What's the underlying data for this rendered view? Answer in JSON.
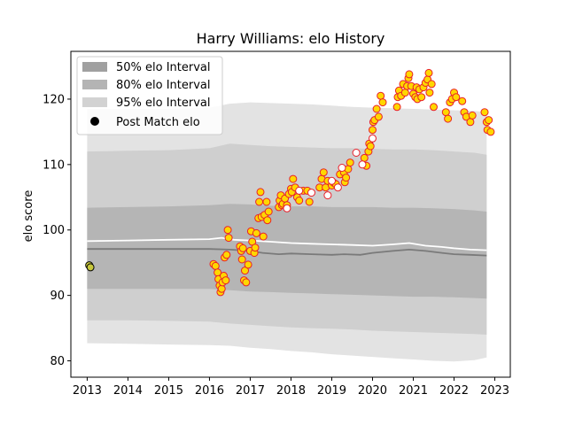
{
  "chart_data": {
    "type": "scatter",
    "title": "Harry Williams: elo History",
    "xlabel": "",
    "ylabel": "elo score",
    "xlim": [
      2012.6,
      2023.38
    ],
    "ylim": [
      77.5,
      127.3
    ],
    "x_ticks": [
      2013,
      2014,
      2015,
      2016,
      2017,
      2018,
      2019,
      2020,
      2021,
      2022,
      2023
    ],
    "x_tick_labels": [
      "2013",
      "2014",
      "2015",
      "2016",
      "2017",
      "2018",
      "2019",
      "2020",
      "2021",
      "2022",
      "2023"
    ],
    "y_ticks": [
      80,
      90,
      100,
      110,
      120
    ],
    "y_tick_labels": [
      "80",
      "90",
      "100",
      "110",
      "120"
    ],
    "grid": false,
    "legend_position": "top-left",
    "legend": [
      {
        "label": "50% elo Interval",
        "kind": "band",
        "color": "#a0a0a0"
      },
      {
        "label": "80% elo Interval",
        "kind": "band",
        "color": "#b4b4b4"
      },
      {
        "label": "95% elo Interval",
        "kind": "band",
        "color": "#d2d2d2"
      },
      {
        "label": "Post Match elo",
        "kind": "marker",
        "color": "#000000"
      }
    ],
    "band_x": [
      2013,
      2014,
      2015,
      2016,
      2016.5,
      2017,
      2017.5,
      2018,
      2018.5,
      2019,
      2019.5,
      2020,
      2020.5,
      2021,
      2021.5,
      2022,
      2022.5,
      2022.8
    ],
    "band_95": {
      "lower": [
        82.7,
        82.6,
        82.5,
        82.4,
        82.3,
        82.0,
        81.8,
        81.5,
        81.3,
        81.0,
        80.8,
        80.6,
        80.4,
        80.2,
        80.0,
        79.9,
        80.1,
        80.5
      ],
      "upper": [
        118.5,
        118.5,
        118.5,
        118.7,
        119.3,
        119.5,
        119.4,
        119.3,
        119.2,
        119.0,
        118.8,
        118.7,
        118.6,
        118.5,
        118.4,
        118.3,
        118.2,
        118.0
      ]
    },
    "band_80": {
      "lower": [
        86.2,
        86.2,
        86.1,
        86.0,
        85.7,
        85.5,
        85.3,
        85.1,
        85.0,
        84.9,
        84.8,
        84.6,
        84.5,
        84.4,
        84.3,
        84.2,
        84.1,
        84.0
      ],
      "upper": [
        112.0,
        112.1,
        112.2,
        112.5,
        113.2,
        113.0,
        112.8,
        112.7,
        112.6,
        112.5,
        112.5,
        112.4,
        112.3,
        112.3,
        112.2,
        112.0,
        111.8,
        111.5
      ]
    },
    "band_50": {
      "lower": [
        91.0,
        91.0,
        91.0,
        91.0,
        90.8,
        90.6,
        90.5,
        90.4,
        90.3,
        90.2,
        90.1,
        90.0,
        89.9,
        89.8,
        89.8,
        89.7,
        89.6,
        89.5
      ],
      "upper": [
        103.4,
        103.5,
        103.6,
        103.8,
        104.0,
        103.9,
        103.7,
        103.6,
        103.6,
        103.5,
        103.5,
        103.5,
        103.4,
        103.4,
        103.3,
        103.2,
        103.0,
        102.8
      ]
    },
    "mean_line_x": [
      2013,
      2014,
      2015,
      2016,
      2016.3,
      2016.6,
      2017,
      2017.5,
      2018,
      2018.5,
      2019,
      2019.5,
      2020,
      2020.5,
      2020.9,
      2021.3,
      2021.7,
      2022,
      2022.4,
      2022.8
    ],
    "mean_line_y": [
      98.3,
      98.4,
      98.5,
      98.6,
      98.8,
      98.5,
      98.4,
      98.2,
      98.0,
      97.9,
      97.8,
      97.7,
      97.6,
      97.8,
      98.0,
      97.6,
      97.4,
      97.2,
      97.0,
      96.9
    ],
    "median_line_x": [
      2013,
      2014,
      2015,
      2016,
      2016.5,
      2017,
      2017.3,
      2017.7,
      2018,
      2018.5,
      2019,
      2019.3,
      2019.7,
      2020,
      2020.5,
      2020.9,
      2021.3,
      2021.7,
      2022,
      2022.4,
      2022.8
    ],
    "median_line_y": [
      97.1,
      97.1,
      97.1,
      97.1,
      97.0,
      96.8,
      96.5,
      96.3,
      96.4,
      96.3,
      96.2,
      96.3,
      96.2,
      96.5,
      96.8,
      97.0,
      96.8,
      96.5,
      96.3,
      96.2,
      96.1
    ],
    "series": [
      {
        "marker_style": "yellow-fill-red-edge",
        "points": [
          [
            2013.05,
            94.6
          ],
          [
            2013.08,
            94.3
          ],
          [
            2016.1,
            94.8
          ],
          [
            2016.15,
            94.5
          ],
          [
            2016.2,
            93.5
          ],
          [
            2016.22,
            92.5
          ],
          [
            2016.25,
            91.5
          ],
          [
            2016.27,
            90.5
          ],
          [
            2016.3,
            91.0
          ],
          [
            2016.32,
            92.0
          ],
          [
            2016.35,
            93.0
          ],
          [
            2016.37,
            95.8
          ],
          [
            2016.4,
            92.3
          ],
          [
            2016.42,
            96.2
          ],
          [
            2016.45,
            100.0
          ],
          [
            2016.47,
            98.8
          ],
          [
            2016.75,
            97.5
          ],
          [
            2016.78,
            96.8
          ],
          [
            2016.8,
            95.5
          ],
          [
            2016.82,
            97.2
          ],
          [
            2016.85,
            92.3
          ],
          [
            2016.87,
            93.8
          ],
          [
            2016.9,
            92.0
          ],
          [
            2016.95,
            94.7
          ],
          [
            2017.0,
            96.8
          ],
          [
            2017.02,
            99.8
          ],
          [
            2017.05,
            98.2
          ],
          [
            2017.1,
            96.5
          ],
          [
            2017.12,
            97.3
          ],
          [
            2017.15,
            99.5
          ],
          [
            2017.2,
            101.8
          ],
          [
            2017.22,
            104.3
          ],
          [
            2017.25,
            105.8
          ],
          [
            2017.28,
            102.0
          ],
          [
            2017.32,
            99.0
          ],
          [
            2017.35,
            102.3
          ],
          [
            2017.4,
            104.3
          ],
          [
            2017.42,
            101.5
          ],
          [
            2017.45,
            102.8
          ],
          [
            2017.7,
            103.5
          ],
          [
            2017.72,
            104.5
          ],
          [
            2017.75,
            105.3
          ],
          [
            2017.78,
            103.8
          ],
          [
            2017.8,
            104.0
          ],
          [
            2017.85,
            104.8
          ],
          [
            2017.9,
            103.8
          ],
          [
            2017.95,
            105.5
          ],
          [
            2018.0,
            106.3
          ],
          [
            2018.02,
            105.8
          ],
          [
            2018.05,
            107.8
          ],
          [
            2018.1,
            106.5
          ],
          [
            2018.15,
            105.0
          ],
          [
            2018.2,
            104.5
          ],
          [
            2018.3,
            106.0
          ],
          [
            2018.4,
            106.0
          ],
          [
            2018.45,
            104.3
          ],
          [
            2018.7,
            106.5
          ],
          [
            2018.75,
            107.8
          ],
          [
            2018.8,
            108.8
          ],
          [
            2018.85,
            106.5
          ],
          [
            2018.9,
            107.5
          ],
          [
            2019.0,
            106.8
          ],
          [
            2019.05,
            107.2
          ],
          [
            2019.1,
            107.0
          ],
          [
            2019.2,
            108.5
          ],
          [
            2019.3,
            108.8
          ],
          [
            2019.32,
            107.3
          ],
          [
            2019.35,
            108.0
          ],
          [
            2019.4,
            109.3
          ],
          [
            2019.45,
            110.3
          ],
          [
            2019.8,
            111.0
          ],
          [
            2019.85,
            109.8
          ],
          [
            2019.9,
            112.0
          ],
          [
            2019.92,
            113.2
          ],
          [
            2019.95,
            112.8
          ],
          [
            2020.0,
            115.3
          ],
          [
            2020.02,
            116.5
          ],
          [
            2020.05,
            116.8
          ],
          [
            2020.1,
            118.5
          ],
          [
            2020.15,
            117.3
          ],
          [
            2020.2,
            120.5
          ],
          [
            2020.25,
            119.5
          ],
          [
            2020.6,
            118.8
          ],
          [
            2020.62,
            120.3
          ],
          [
            2020.65,
            121.3
          ],
          [
            2020.7,
            120.5
          ],
          [
            2020.75,
            122.3
          ],
          [
            2020.8,
            121.0
          ],
          [
            2020.85,
            122.0
          ],
          [
            2020.88,
            123.2
          ],
          [
            2020.9,
            123.8
          ],
          [
            2020.95,
            122.0
          ],
          [
            2021.0,
            120.8
          ],
          [
            2021.05,
            120.3
          ],
          [
            2021.08,
            121.8
          ],
          [
            2021.1,
            120.0
          ],
          [
            2021.15,
            121.5
          ],
          [
            2021.2,
            120.3
          ],
          [
            2021.25,
            121.8
          ],
          [
            2021.3,
            122.5
          ],
          [
            2021.35,
            123.0
          ],
          [
            2021.38,
            124.0
          ],
          [
            2021.4,
            121.0
          ],
          [
            2021.45,
            122.3
          ],
          [
            2021.5,
            118.8
          ],
          [
            2021.8,
            118.0
          ],
          [
            2021.85,
            117.0
          ],
          [
            2021.9,
            119.5
          ],
          [
            2021.95,
            120.0
          ],
          [
            2022.0,
            121.0
          ],
          [
            2022.05,
            120.3
          ],
          [
            2022.2,
            119.7
          ],
          [
            2022.25,
            118.0
          ],
          [
            2022.3,
            117.3
          ],
          [
            2022.4,
            116.5
          ],
          [
            2022.45,
            117.5
          ],
          [
            2022.75,
            118.0
          ],
          [
            2022.8,
            116.5
          ],
          [
            2022.82,
            115.3
          ],
          [
            2022.85,
            116.8
          ],
          [
            2022.9,
            115.0
          ]
        ]
      },
      {
        "marker_style": "white-fill-red-edge",
        "points": [
          [
            2017.9,
            103.3
          ],
          [
            2018.2,
            106.0
          ],
          [
            2018.5,
            105.7
          ],
          [
            2018.9,
            105.3
          ],
          [
            2019.0,
            107.5
          ],
          [
            2019.15,
            106.5
          ],
          [
            2019.25,
            109.5
          ],
          [
            2019.6,
            111.8
          ],
          [
            2019.75,
            110.0
          ],
          [
            2020.0,
            114.0
          ]
        ]
      }
    ]
  }
}
